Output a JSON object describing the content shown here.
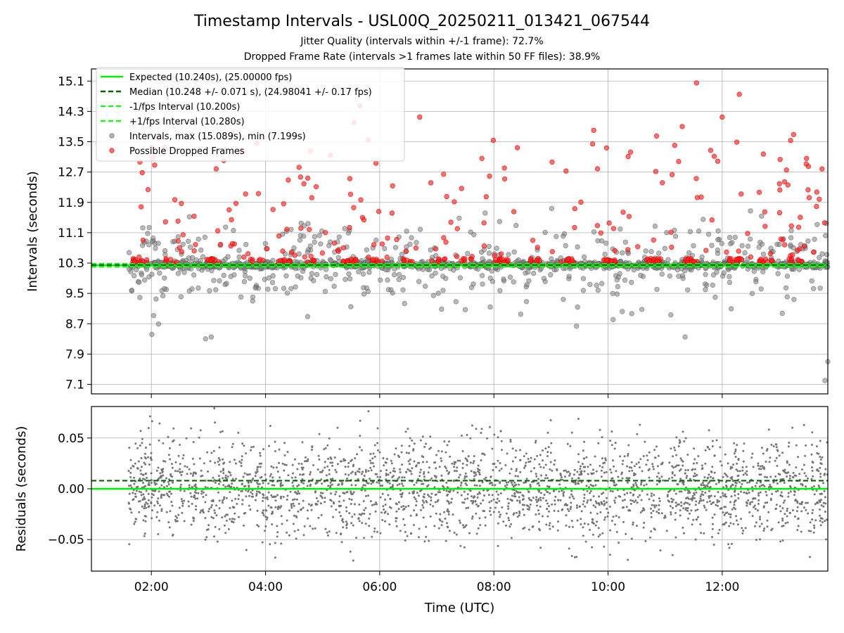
{
  "chart_data": {
    "type": "scatter",
    "title": "Timestamp Intervals - USL00Q_20250211_013421_067544",
    "subtitle_lines": [
      "Jitter Quality (intervals within +/-1 frame): 72.7%",
      "Dropped Frame Rate (intervals >1 frames late within 50 FF files): 38.9%"
    ],
    "xlabel": "Time (UTC)",
    "xlim_hours": [
      0.95,
      13.85
    ],
    "x_tick_hours": [
      2,
      4,
      6,
      8,
      10,
      12
    ],
    "x_tick_labels": [
      "02:00",
      "04:00",
      "06:00",
      "08:00",
      "10:00",
      "12:00"
    ],
    "data_x_range_hours": [
      1.6,
      13.85
    ],
    "grid": true,
    "colors": {
      "expected": "#00ee00",
      "median": "#006400",
      "fps_interval": "#22ee22",
      "intervals": "#808080",
      "dropped": "#ff2222"
    },
    "top_panel": {
      "ylabel": "Intervals (seconds)",
      "ylim": [
        6.85,
        15.42
      ],
      "y_ticks": [
        7.1,
        7.9,
        8.7,
        9.5,
        10.3,
        11.1,
        11.9,
        12.7,
        13.5,
        14.3,
        15.1
      ],
      "y_tick_labels": [
        "7.1",
        "7.9",
        "8.7",
        "9.5",
        "10.3",
        "11.1",
        "11.9",
        "12.7",
        "13.5",
        "14.3",
        "15.1"
      ],
      "legend_position": "upper-left",
      "legend": [
        "Expected (10.240s), (25.00000 fps)",
        "Median (10.248 +/- 0.071 s), (24.98041 +/- 0.17 fps)",
        "-1/fps Interval (10.200s)",
        "+1/fps Interval (10.280s)",
        "Intervals, max (15.089s), min (7.199s)",
        "Possible Dropped Frames"
      ],
      "lines": {
        "expected": 10.24,
        "median": 10.248,
        "minus_fps": 10.2,
        "plus_fps": 10.28
      },
      "stats": {
        "interval_max": 15.089,
        "interval_min": 7.199
      },
      "notable_points": [
        {
          "x": 13.8,
          "y": 7.2,
          "series": "intervals"
        },
        {
          "x": 13.85,
          "y": 7.7,
          "series": "intervals"
        },
        {
          "x": 11.55,
          "y": 15.05,
          "series": "dropped"
        },
        {
          "x": 12.3,
          "y": 14.75,
          "series": "dropped"
        },
        {
          "x": 5.65,
          "y": 14.45,
          "series": "dropped"
        },
        {
          "x": 12.0,
          "y": 14.15,
          "series": "dropped"
        },
        {
          "x": 6.7,
          "y": 14.15,
          "series": "dropped"
        },
        {
          "x": 5.55,
          "y": 14.0,
          "series": "dropped"
        },
        {
          "x": 11.3,
          "y": 13.9,
          "series": "dropped"
        },
        {
          "x": 9.75,
          "y": 13.8,
          "series": "dropped"
        },
        {
          "x": 2.7,
          "y": 13.7,
          "series": "dropped"
        },
        {
          "x": 10.85,
          "y": 13.65,
          "series": "dropped"
        },
        {
          "x": 3.05,
          "y": 8.35,
          "series": "intervals"
        },
        {
          "x": 2.95,
          "y": 8.3,
          "series": "intervals"
        },
        {
          "x": 11.35,
          "y": 8.35,
          "series": "intervals"
        }
      ]
    },
    "bottom_panel": {
      "ylabel": "Residuals (seconds)",
      "ylim": [
        -0.081,
        0.081
      ],
      "y_ticks": [
        -0.05,
        0.0,
        0.05
      ],
      "y_tick_labels": [
        "−0.05",
        "0.00",
        "0.05"
      ],
      "lines": {
        "zero": 0.0,
        "median_offset": 0.008
      }
    }
  }
}
